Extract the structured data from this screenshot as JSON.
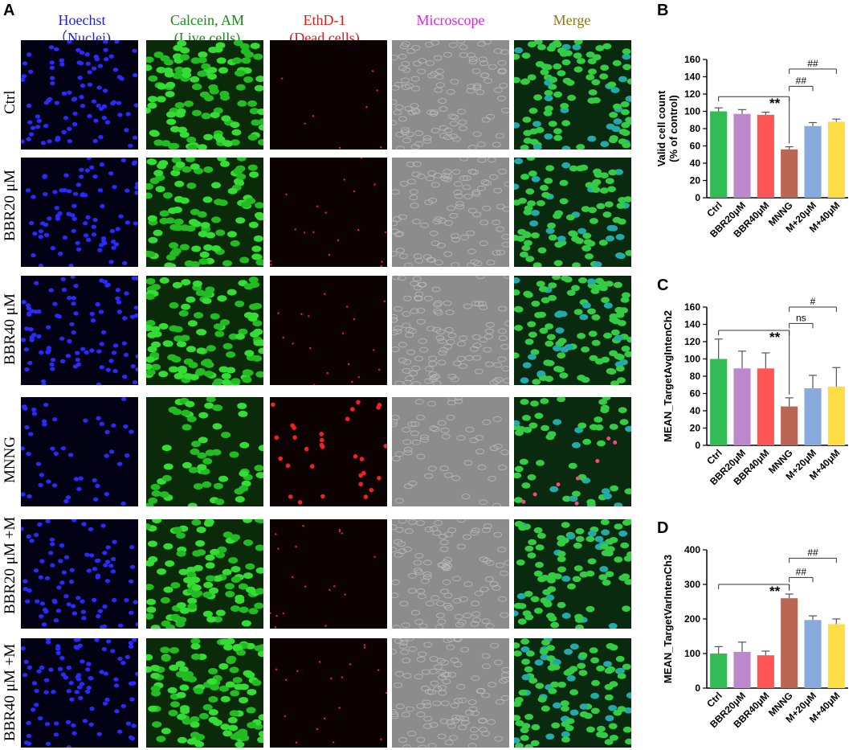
{
  "panel_labels": {
    "a": "A",
    "b": "B",
    "c": "C",
    "d": "D"
  },
  "columns": [
    {
      "title": "Hoechst",
      "subtitle": "（Nuclei)",
      "color": "#1f1fd6"
    },
    {
      "title": "Calcein, AM",
      "subtitle": "(Live cells)",
      "color": "#1a8a1a"
    },
    {
      "title": "EthD-1",
      "subtitle": "(Dead cells)",
      "color": "#e01818"
    },
    {
      "title": "Microscope",
      "subtitle": "",
      "color": "#e020e0"
    },
    {
      "title": "Merge",
      "subtitle": "",
      "color": "#8a7a10"
    }
  ],
  "rows": [
    "Ctrl",
    "BBR20 μM",
    "BBR40 μM",
    "MNNG",
    "BBR20 μM +M",
    "BBR40 μM +M"
  ],
  "bar_colors": [
    "#33bb55",
    "#bb88cc",
    "#ff5555",
    "#bb6655",
    "#88aadd",
    "#ffdd44"
  ],
  "chart_data": [
    {
      "type": "bar",
      "panel": "B",
      "categories": [
        "Ctrl",
        "BBR20μM",
        "BBR40μM",
        "MNNG",
        "M+20μM",
        "M+40μM"
      ],
      "values": [
        100,
        97,
        96,
        56,
        83,
        88
      ],
      "errors": [
        4,
        5,
        3,
        3,
        4,
        3
      ],
      "ylabel": "Valid cell count\n(% of control)",
      "ylim": [
        0,
        160
      ],
      "yticks": [
        0,
        20,
        40,
        60,
        80,
        100,
        120,
        140,
        160
      ],
      "annotations": [
        {
          "from": "Ctrl",
          "to": "MNNG",
          "text": "**",
          "y": 117
        },
        {
          "from": "MNNG",
          "to": "M+20μM",
          "text": "##",
          "y": 129
        },
        {
          "from": "MNNG",
          "to": "M+40μM",
          "text": "##",
          "y": 149
        }
      ]
    },
    {
      "type": "bar",
      "panel": "C",
      "categories": [
        "Ctrl",
        "BBR20μM",
        "BBR40μM",
        "MNNG",
        "M+20μM",
        "M+40μM"
      ],
      "values": [
        100,
        89,
        89,
        45,
        66,
        68
      ],
      "errors": [
        23,
        20,
        18,
        10,
        15,
        22
      ],
      "ylabel": "MEAN_TargetAvgIntenCh2",
      "ylim": [
        0,
        160
      ],
      "yticks": [
        0,
        20,
        40,
        60,
        80,
        100,
        120,
        140,
        160
      ],
      "annotations": [
        {
          "from": "Ctrl",
          "to": "MNNG",
          "text": "**",
          "y": 133
        },
        {
          "from": "MNNG",
          "to": "M+20μM",
          "text": "ns",
          "y": 141
        },
        {
          "from": "MNNG",
          "to": "M+40μM",
          "text": "#",
          "y": 160
        }
      ]
    },
    {
      "type": "bar",
      "panel": "D",
      "categories": [
        "Ctrl",
        "BBR20μM",
        "BBR40μM",
        "MNNG",
        "M+20μM",
        "M+40μM"
      ],
      "values": [
        100,
        105,
        95,
        260,
        197,
        185
      ],
      "errors": [
        20,
        28,
        12,
        12,
        12,
        15
      ],
      "ylabel": "MEAN_TargetVarIntenCh3",
      "ylim": [
        0,
        400
      ],
      "yticks": [
        0,
        100,
        200,
        300,
        400
      ],
      "annotations": [
        {
          "from": "Ctrl",
          "to": "MNNG",
          "text": "**",
          "y": 300
        },
        {
          "from": "MNNG",
          "to": "M+20μM",
          "text": "##",
          "y": 320
        },
        {
          "from": "MNNG",
          "to": "M+40μM",
          "text": "##",
          "y": 376
        }
      ]
    }
  ]
}
